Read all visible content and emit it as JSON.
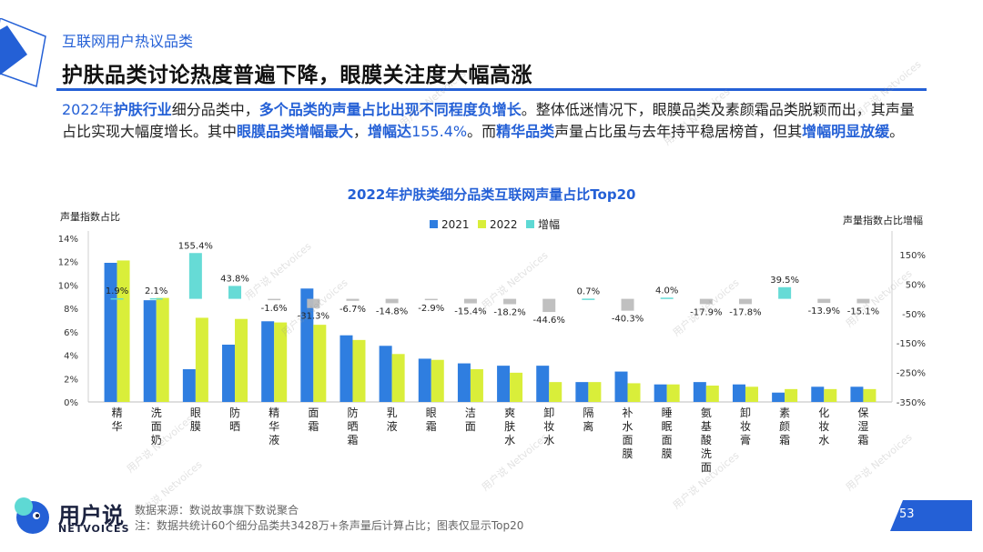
{
  "header": {
    "section_label": "互联网用户热议品类",
    "title": "护肤品类讨论热度普遍下降，眼膜关注度大幅高涨"
  },
  "intro": {
    "p1": "2022年",
    "p2": "护肤行业",
    "p3": "细分品类中，",
    "p4": "多个品类的声量占比出现不同程度负增长",
    "p5": "。整体低迷情况下，眼膜品类及素颜霜品类脱颖而出，其声量占比实现大幅度增长。其中",
    "p6": "眼膜品类增幅最大",
    "p7": "，",
    "p8": "增幅达",
    "p9": "155.4%",
    "p10": "。而",
    "p11": "精华品类",
    "p12": "声量占比虽与去年持平稳居榜首，但其",
    "p13": "增幅明显放缓",
    "p14": "。"
  },
  "footer": {
    "logo_text": "用户说",
    "logo_sub": "NETVOICES",
    "source": "数据来源：数说故事旗下数说聚合",
    "note": "注：数据共统计60个细分品类共3428万+条声量后计算占比；图表仅显示Top20",
    "page_number": "53"
  },
  "watermark": "用户说 Netvoices",
  "colors": {
    "accent": "#2460d6",
    "series_2021": "#2f7ee0",
    "series_2022": "#d9ee3a",
    "growth_pos": "#5ed9d4",
    "growth_neg": "#bdbdbd"
  },
  "chart_data": {
    "type": "bar",
    "title": "2022年护肤类细分品类互联网声量占比Top20",
    "ylabel": "声量指数占比",
    "y2label": "声量指数占比增幅",
    "ylim": [
      0,
      14
    ],
    "yticks": [
      "0%",
      "2%",
      "4%",
      "6%",
      "8%",
      "10%",
      "12%",
      "14%"
    ],
    "y2lim": [
      -350,
      150
    ],
    "y2ticks": [
      "150%",
      "50%",
      "-50%",
      "-150%",
      "-250%",
      "-350%"
    ],
    "legend": [
      "2021",
      "2022",
      "增幅"
    ],
    "legend_position": "top-center",
    "categories": [
      "精华",
      "洗面奶",
      "眼膜",
      "防晒",
      "精华液",
      "面霜",
      "防晒霜",
      "乳液",
      "眼霜",
      "洁面",
      "爽肤水",
      "卸妆水",
      "隔离",
      "补水面膜",
      "睡眠面膜",
      "氨基酸洗面奶",
      "卸妆膏",
      "素颜霜",
      "化妆水",
      "保湿霜"
    ],
    "series": [
      {
        "name": "2021",
        "values": [
          11.9,
          8.7,
          2.8,
          4.9,
          6.9,
          9.7,
          5.7,
          4.8,
          3.7,
          3.3,
          3.1,
          3.1,
          1.7,
          2.6,
          1.5,
          1.7,
          1.5,
          0.8,
          1.3,
          1.3
        ]
      },
      {
        "name": "2022",
        "values": [
          12.1,
          8.9,
          7.2,
          7.1,
          6.8,
          6.6,
          5.3,
          4.1,
          3.6,
          2.8,
          2.5,
          1.7,
          1.7,
          1.6,
          1.5,
          1.4,
          1.3,
          1.1,
          1.1,
          1.1
        ]
      },
      {
        "name": "增幅",
        "values": [
          1.9,
          2.1,
          155.4,
          43.8,
          -1.6,
          -31.3,
          -6.7,
          -14.8,
          -2.9,
          -15.4,
          -18.2,
          -44.6,
          0.7,
          -40.3,
          4.0,
          -17.9,
          -17.8,
          39.5,
          -13.9,
          -15.1
        ]
      }
    ],
    "growth_labels": [
      "1.9%",
      "2.1%",
      "155.4%",
      "43.8%",
      "-1.6%",
      "-31.3%",
      "-6.7%",
      "-14.8%",
      "-2.9%",
      "-15.4%",
      "-18.2%",
      "-44.6%",
      "0.7%",
      "-40.3%",
      "4.0%",
      "-17.9%",
      "-17.8%",
      "39.5%",
      "-13.9%",
      "-15.1%"
    ]
  }
}
